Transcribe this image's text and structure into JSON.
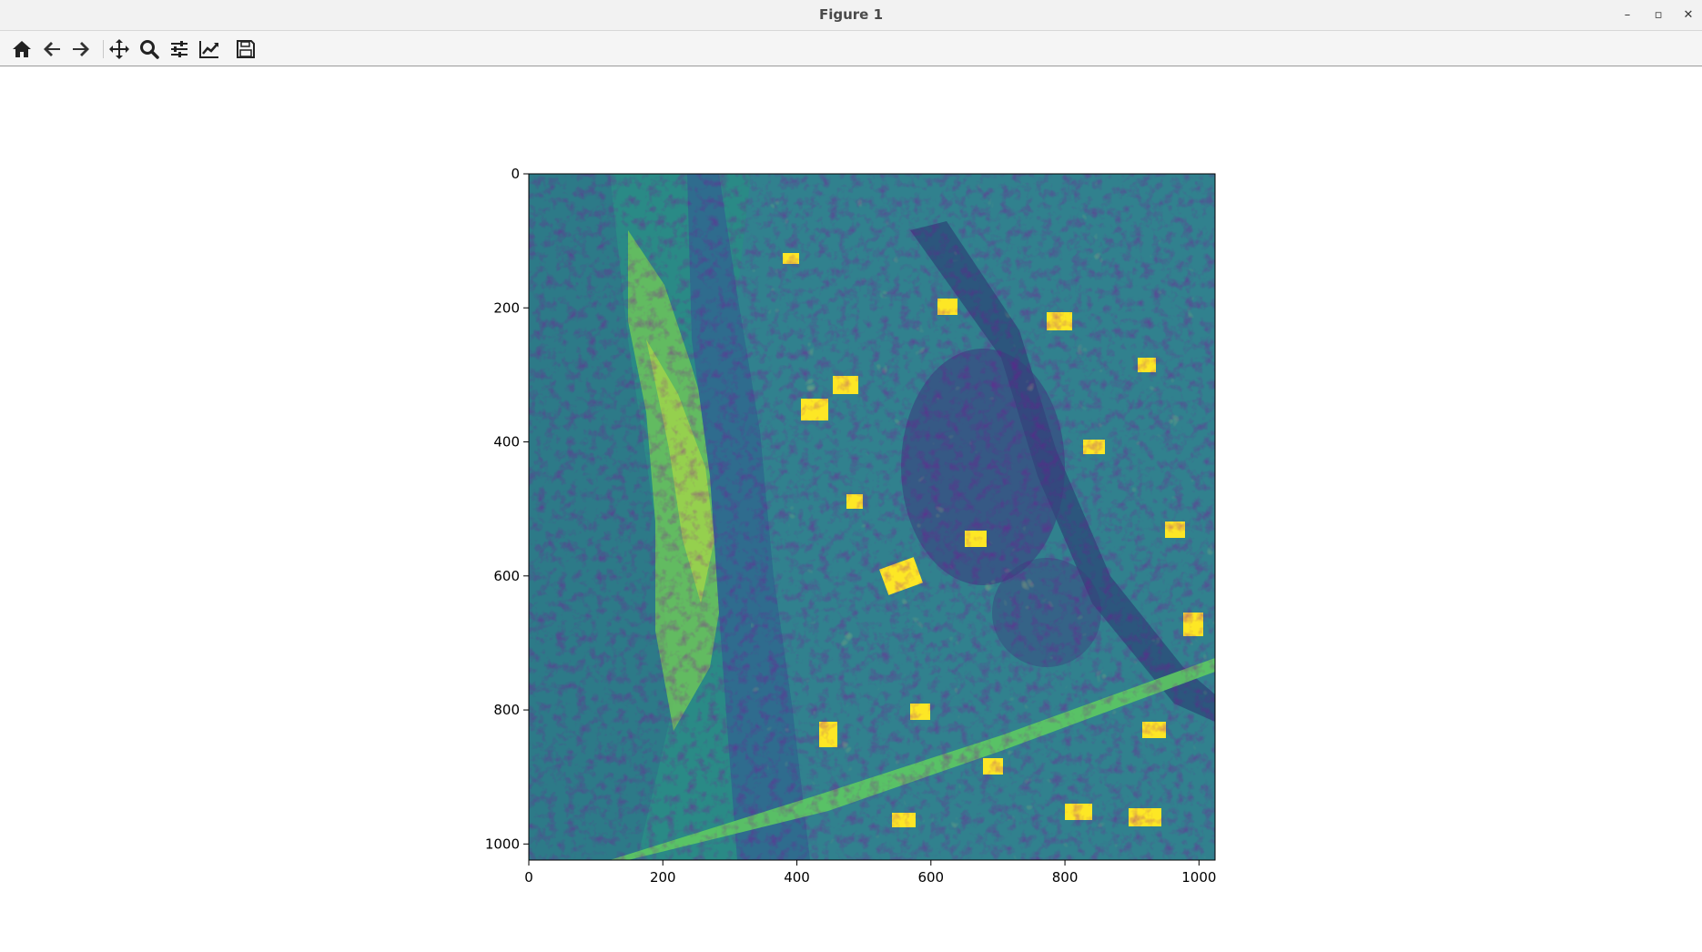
{
  "window": {
    "title": "Figure 1",
    "minimize_glyph": "–",
    "maximize_glyph": "▫",
    "close_glyph": "✕"
  },
  "toolbar": {
    "buttons": [
      {
        "name": "home-icon",
        "tooltip": ""
      },
      {
        "name": "back-arrow-icon",
        "tooltip": ""
      },
      {
        "name": "forward-arrow-icon",
        "tooltip": ""
      },
      {
        "name": "pan-move-icon",
        "tooltip": ""
      },
      {
        "name": "zoom-magnifier-icon",
        "tooltip": ""
      },
      {
        "name": "configure-subplots-icon",
        "tooltip": ""
      },
      {
        "name": "edit-axis-curves-icon",
        "tooltip": ""
      },
      {
        "name": "save-floppy-icon",
        "tooltip": ""
      }
    ]
  },
  "chart_data": {
    "type": "heatmap",
    "title": "",
    "xlabel": "",
    "ylabel": "",
    "colormap": "viridis",
    "image_shape": [
      1024,
      1024
    ],
    "xlim": [
      0,
      1024
    ],
    "ylim": [
      1024,
      0
    ],
    "xticks": [
      0,
      200,
      400,
      600,
      800,
      1000
    ],
    "yticks": [
      0,
      200,
      400,
      600,
      800,
      1000
    ],
    "xtick_labels": [
      "0",
      "200",
      "400",
      "600",
      "800",
      "1000"
    ],
    "ytick_labels": [
      "0",
      "200",
      "400",
      "600",
      "800",
      "1000"
    ],
    "content": "aerial image: river on the left side, dense urban area with buildings and roads on the right, bridge across bottom",
    "colors": {
      "low": "#440154",
      "mid_low": "#31688e",
      "mid": "#21918c",
      "mid_high": "#5ec962",
      "high": "#fde725"
    }
  }
}
